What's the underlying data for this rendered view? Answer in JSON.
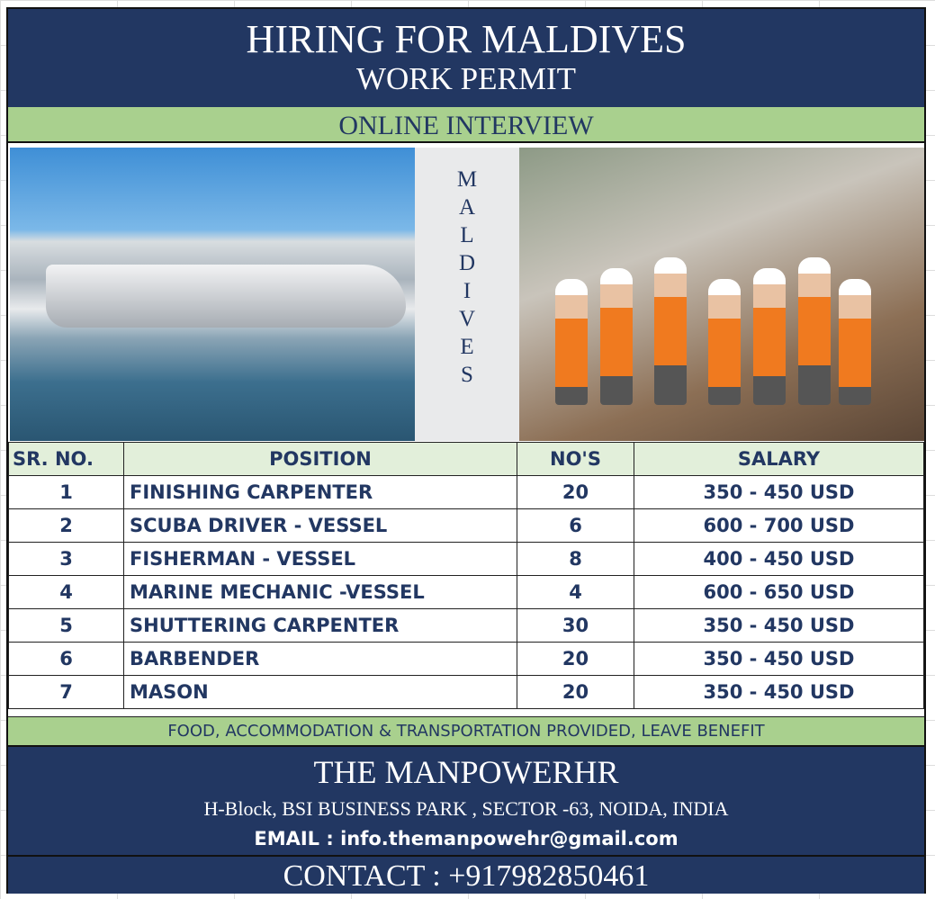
{
  "header": {
    "title": "HIRING FOR MALDIVES",
    "subtitle": "WORK PERMIT",
    "interview": "ONLINE INTERVIEW"
  },
  "vertical_label": [
    "M",
    "A",
    "L",
    "D",
    "I",
    "V",
    "E",
    "S"
  ],
  "colors": {
    "navy": "#223762",
    "green": "#a9d08e",
    "header_row": "#e2efda"
  },
  "table": {
    "columns": [
      "SR. NO.",
      "POSITION",
      "NO'S",
      "SALARY"
    ],
    "rows": [
      [
        "1",
        "FINISHING CARPENTER",
        "20",
        "350 - 450 USD"
      ],
      [
        "2",
        "SCUBA DRIVER - VESSEL",
        "6",
        "600 - 700 USD"
      ],
      [
        "3",
        "FISHERMAN - VESSEL",
        "8",
        "400 - 450 USD"
      ],
      [
        "4",
        "MARINE MECHANIC -VESSEL",
        "4",
        "600 - 650 USD"
      ],
      [
        "5",
        "SHUTTERING CARPENTER",
        "30",
        "350 - 450 USD"
      ],
      [
        "6",
        "BARBENDER",
        "20",
        "350 - 450 USD"
      ],
      [
        "7",
        "MASON",
        "20",
        "350 - 450 USD"
      ]
    ]
  },
  "benefits": "FOOD, ACCOMMODATION & TRANSPORTATION PROVIDED, LEAVE BENEFIT",
  "company": {
    "name": "THE MANPOWERHR",
    "address": "H-Block, BSI BUSINESS PARK , SECTOR -63, NOIDA, INDIA",
    "email": "EMAIL : info.themanpowehr@gmail.com",
    "contact": "CONTACT : +917982850461"
  }
}
